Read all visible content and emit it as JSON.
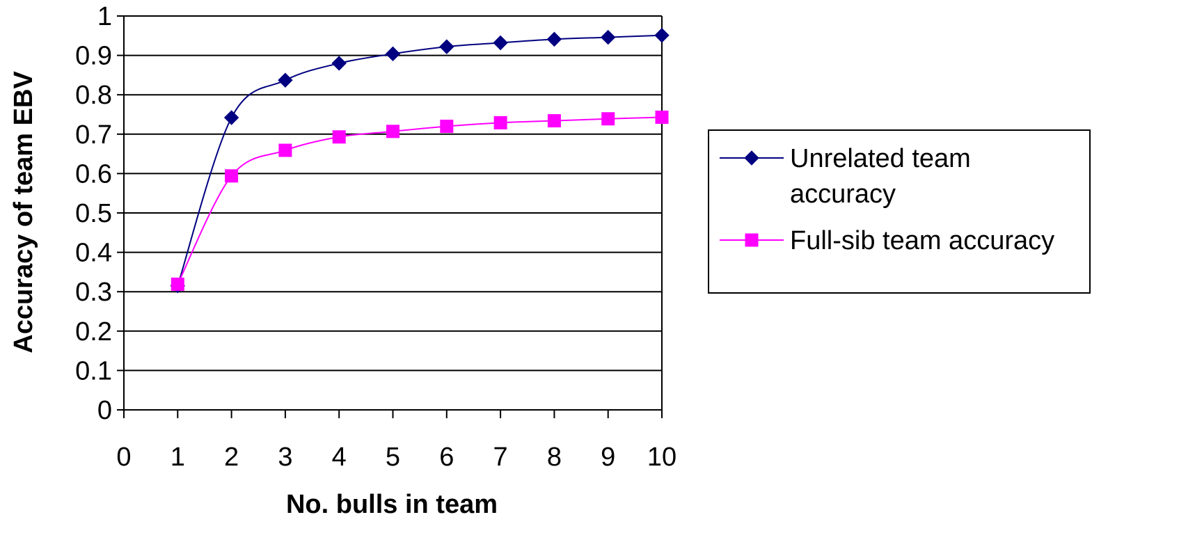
{
  "chart_data": {
    "type": "line",
    "xlabel": "No. bulls in team",
    "ylabel": "Accuracy of team EBV",
    "xlim": [
      0,
      10
    ],
    "ylim": [
      0,
      1
    ],
    "x_ticks": [
      0,
      1,
      2,
      3,
      4,
      5,
      6,
      7,
      8,
      9,
      10
    ],
    "y_ticks": [
      0,
      0.1,
      0.2,
      0.3,
      0.4,
      0.5,
      0.6,
      0.7,
      0.8,
      0.9,
      1
    ],
    "grid": "horizontal",
    "legend_position": "right",
    "x": [
      1,
      2,
      3,
      4,
      5,
      6,
      7,
      8,
      9,
      10
    ],
    "series": [
      {
        "name": "Unrelated team accuracy",
        "legend_lines": [
          "Unrelated team",
          "accuracy"
        ],
        "color": "#000080",
        "marker": "diamond",
        "values": [
          0.315,
          0.742,
          0.837,
          0.88,
          0.904,
          0.922,
          0.932,
          0.941,
          0.946,
          0.951
        ]
      },
      {
        "name": "Full-sib team accuracy",
        "legend_lines": [
          "Full-sib team accuracy"
        ],
        "color": "#FF00FF",
        "marker": "square",
        "values": [
          0.319,
          0.594,
          0.659,
          0.693,
          0.707,
          0.72,
          0.729,
          0.734,
          0.739,
          0.743
        ]
      }
    ]
  }
}
